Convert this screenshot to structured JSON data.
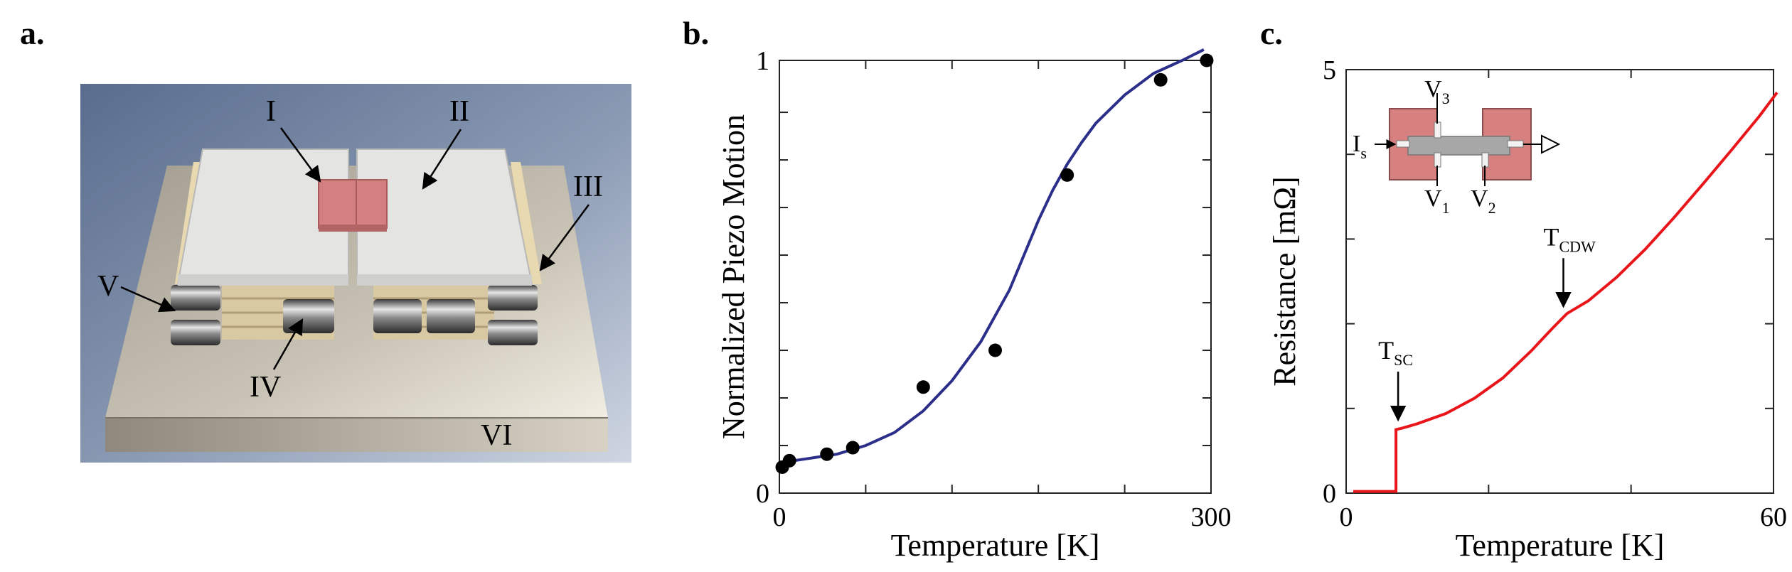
{
  "panels": {
    "a": {
      "label": "a.",
      "callouts": [
        "I",
        "II",
        "III",
        "IV",
        "V",
        "VI"
      ]
    },
    "b": {
      "label": "b."
    },
    "c": {
      "label": "c."
    }
  },
  "colors": {
    "fit_curve": "#2b2f8a",
    "resistance_curve": "#e8161b",
    "contact_pad": "#d68080",
    "sample_bar": "#a7a7a7"
  },
  "chart_data": [
    {
      "id": "b",
      "type": "scatter",
      "title": "",
      "xlabel": "Temperature [K]",
      "ylabel": "Normalized Piezo Motion",
      "xlim": [
        0,
        300
      ],
      "ylim": [
        0,
        1
      ],
      "x_tick_labels": [
        "0",
        "300"
      ],
      "y_tick_labels": [
        "0",
        "1"
      ],
      "series": [
        {
          "name": "measured",
          "marker": "filled-circle",
          "points": [
            [
              2,
              0.06
            ],
            [
              7,
              0.075
            ],
            [
              33,
              0.09
            ],
            [
              51,
              0.105
            ],
            [
              100,
              0.245
            ],
            [
              150,
              0.33
            ],
            [
              200,
              0.735
            ],
            [
              265,
              0.955
            ],
            [
              297,
              1.0
            ]
          ]
        },
        {
          "name": "fit",
          "style": "line",
          "points": [
            [
              0,
              0.07
            ],
            [
              20,
              0.08
            ],
            [
              40,
              0.09
            ],
            [
              60,
              0.11
            ],
            [
              80,
              0.14
            ],
            [
              100,
              0.19
            ],
            [
              120,
              0.26
            ],
            [
              140,
              0.35
            ],
            [
              160,
              0.47
            ],
            [
              170,
              0.55
            ],
            [
              180,
              0.63
            ],
            [
              190,
              0.7
            ],
            [
              200,
              0.76
            ],
            [
              210,
              0.81
            ],
            [
              220,
              0.855
            ],
            [
              240,
              0.92
            ],
            [
              260,
              0.97
            ],
            [
              280,
              1.0
            ],
            [
              295,
              1.025
            ]
          ]
        }
      ]
    },
    {
      "id": "c",
      "type": "line",
      "title": "",
      "xlabel": "Temperature [K]",
      "ylabel": "Resistance [mΩ]",
      "xlim": [
        0,
        60
      ],
      "ylim": [
        0,
        5
      ],
      "x_tick_labels": [
        "0",
        "60"
      ],
      "y_tick_labels": [
        "0",
        "5"
      ],
      "series": [
        {
          "name": "resistance",
          "points": [
            [
              1,
              0.02
            ],
            [
              7,
              0.02
            ],
            [
              7.0,
              0.75
            ],
            [
              8,
              0.77
            ],
            [
              10,
              0.82
            ],
            [
              14,
              0.94
            ],
            [
              18,
              1.12
            ],
            [
              22,
              1.36
            ],
            [
              26,
              1.68
            ],
            [
              29,
              1.95
            ],
            [
              31,
              2.12
            ],
            [
              34,
              2.27
            ],
            [
              38,
              2.55
            ],
            [
              42,
              2.88
            ],
            [
              46,
              3.25
            ],
            [
              50,
              3.64
            ],
            [
              54,
              4.04
            ],
            [
              58,
              4.45
            ],
            [
              60.5,
              4.73
            ]
          ]
        }
      ],
      "annotations": {
        "t_sc": {
          "main": "T",
          "sub": "SC",
          "at": [
            7.3,
            0.78
          ]
        },
        "t_cdw": {
          "main": "T",
          "sub": "CDW",
          "at": [
            30.5,
            2.12
          ]
        }
      },
      "inset": {
        "current_label": "I",
        "current_sub": "s",
        "v1": "V",
        "v1_sub": "1",
        "v2": "V",
        "v2_sub": "2",
        "v3": "V",
        "v3_sub": "3"
      }
    }
  ]
}
